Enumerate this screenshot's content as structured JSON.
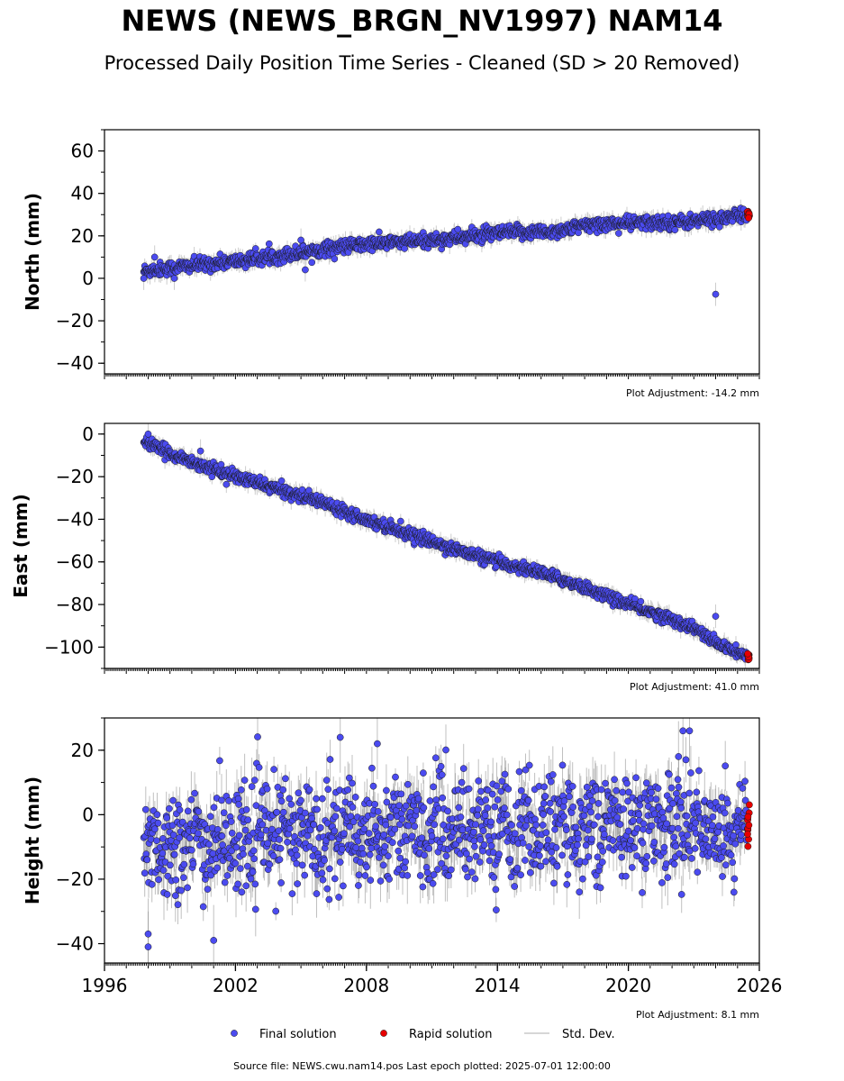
{
  "title": "NEWS (NEWS_BRGN_NV1997) NAM14",
  "subtitle": "Processed Daily Position Time Series - Cleaned (SD > 20 Removed)",
  "source_text": "Source file: NEWS.cwu.nam14.pos  Last epoch plotted: 2025-07-01 12:00:00",
  "colors": {
    "final": "#4b4bf0",
    "rapid": "#e60000",
    "stddev": "#c8c8c8",
    "marker_edge": "#1a1a1a"
  },
  "legend": [
    {
      "key": "final",
      "label": "Final solution",
      "style": "marker"
    },
    {
      "key": "rapid",
      "label": "Rapid solution",
      "style": "marker"
    },
    {
      "key": "stddev",
      "label": "Std. Dev.",
      "style": "line"
    }
  ],
  "chart_data": [
    {
      "type": "scatter",
      "ylabel": "North (mm)",
      "adjustment": "Plot Adjustment: -14.2 mm",
      "xlim": [
        1996,
        2026
      ],
      "ylim": [
        -45,
        70
      ],
      "yticks": [
        -40,
        -20,
        0,
        20,
        40,
        60
      ],
      "xticks": [],
      "trend": [
        [
          1997.8,
          3.5
        ],
        [
          2000.5,
          6.5
        ],
        [
          2002.5,
          8.5
        ],
        [
          2004.5,
          11.5
        ],
        [
          2006.5,
          14.5
        ],
        [
          2008.5,
          16.5
        ],
        [
          2010.5,
          17.5
        ],
        [
          2012.5,
          19.5
        ],
        [
          2014.5,
          21.5
        ],
        [
          2016.5,
          22.0
        ],
        [
          2018.5,
          25.5
        ],
        [
          2020.5,
          26.0
        ],
        [
          2022.5,
          26.5
        ],
        [
          2024.5,
          28.5
        ],
        [
          2025.5,
          30.0
        ]
      ],
      "scatter_amp": 1.8,
      "sd_base": 2.5,
      "outliers": [
        [
          1997.8,
          0
        ],
        [
          1998.3,
          10
        ],
        [
          1999.2,
          0
        ],
        [
          2005.2,
          4
        ],
        [
          2005.0,
          18
        ],
        [
          2024.0,
          -7.5
        ]
      ],
      "rapid": {
        "x_range": [
          2025.45,
          2025.55
        ],
        "y_range": [
          28,
          32
        ]
      }
    },
    {
      "type": "scatter",
      "ylabel": "East (mm)",
      "adjustment": "Plot Adjustment: 41.0 mm",
      "xlim": [
        1996,
        2026
      ],
      "ylim": [
        -110,
        5
      ],
      "yticks": [
        -100,
        -80,
        -60,
        -40,
        -20,
        0
      ],
      "xticks": [],
      "trend": [
        [
          1997.8,
          -3
        ],
        [
          1998.5,
          -7
        ],
        [
          2000.0,
          -13
        ],
        [
          2002.0,
          -20
        ],
        [
          2004.0,
          -26
        ],
        [
          2006.0,
          -32
        ],
        [
          2008.0,
          -40
        ],
        [
          2010.0,
          -47
        ],
        [
          2012.0,
          -54
        ],
        [
          2014.0,
          -60
        ],
        [
          2016.0,
          -65
        ],
        [
          2018.0,
          -72
        ],
        [
          2020.0,
          -80
        ],
        [
          2022.0,
          -87
        ],
        [
          2023.0,
          -91
        ],
        [
          2024.0,
          -98
        ],
        [
          2025.5,
          -105
        ]
      ],
      "scatter_amp": 1.5,
      "sd_base": 2.5,
      "outliers": [
        [
          1998.0,
          0
        ],
        [
          2000.4,
          -8
        ],
        [
          2024.0,
          -85.5
        ]
      ],
      "rapid": {
        "x_range": [
          2025.45,
          2025.55
        ],
        "y_range": [
          -106,
          -103
        ]
      }
    },
    {
      "type": "scatter",
      "ylabel": "Height (mm)",
      "adjustment": "Plot Adjustment: 8.1 mm",
      "xlim": [
        1996,
        2026
      ],
      "ylim": [
        -46,
        30
      ],
      "yticks": [
        -40,
        -20,
        0,
        20
      ],
      "xticks": [
        1996,
        2002,
        2008,
        2014,
        2020,
        2026
      ],
      "trend": [
        [
          1997.8,
          -9
        ],
        [
          2000.0,
          -9
        ],
        [
          2004.0,
          -6
        ],
        [
          2008.0,
          -5
        ],
        [
          2012.0,
          -4
        ],
        [
          2016.0,
          -4
        ],
        [
          2020.0,
          -3
        ],
        [
          2023.0,
          -3
        ],
        [
          2025.5,
          -5
        ]
      ],
      "scatter_amp": 8,
      "sd_base": 5,
      "outliers": [
        [
          1998.0,
          -41
        ],
        [
          1998.0,
          -37
        ],
        [
          2001.0,
          -39
        ],
        [
          2006.8,
          24
        ],
        [
          2008.5,
          22
        ],
        [
          2022.5,
          26
        ],
        [
          2022.8,
          26
        ],
        [
          2022.3,
          18
        ]
      ],
      "rapid": {
        "x_range": [
          2025.45,
          2025.55
        ],
        "y_range": [
          -10,
          4
        ]
      }
    }
  ]
}
